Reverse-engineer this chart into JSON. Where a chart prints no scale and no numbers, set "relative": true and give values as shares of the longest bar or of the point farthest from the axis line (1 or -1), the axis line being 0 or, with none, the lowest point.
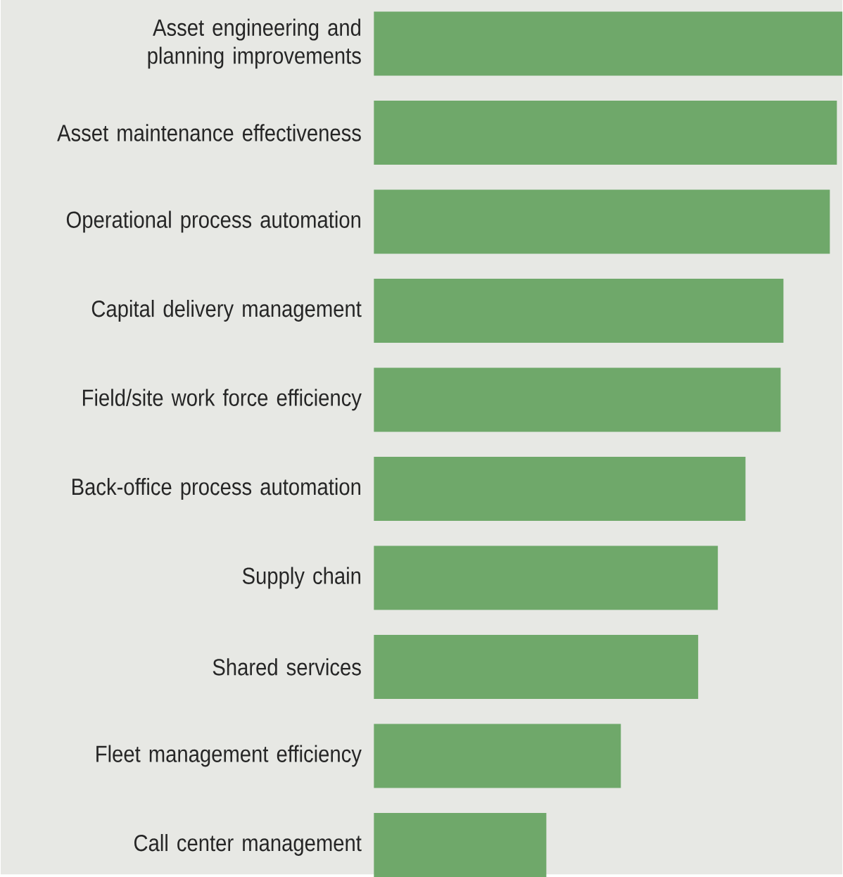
{
  "chart_data": {
    "type": "bar",
    "orientation": "horizontal",
    "relative": true,
    "color": "#6fa86a",
    "categories": [
      "Asset engineering and planning improvements",
      "Asset maintenance effectiveness",
      "Operational process automation",
      "Capital delivery management",
      "Field/site work force efficiency",
      "Back-office process automation",
      "Supply chain",
      "Shared services",
      "Fleet management efficiency",
      "Call center management"
    ],
    "values": [
      1,
      0.988,
      0.973,
      0.874,
      0.868,
      0.793,
      0.734,
      0.692,
      0.527,
      0.368
    ]
  }
}
